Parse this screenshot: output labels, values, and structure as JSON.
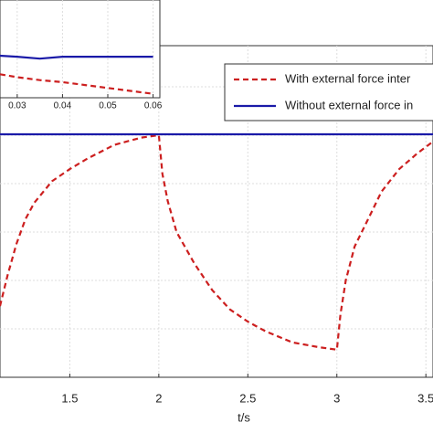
{
  "chart_data": [
    {
      "type": "line",
      "x_label": "t/s",
      "xlim": [
        1.108,
        3.54
      ],
      "ylim": [
        0,
        6.85
      ],
      "xticks": [
        1.5,
        2,
        2.5,
        3,
        3.5
      ],
      "grid": true,
      "legend": "upper right",
      "series": [
        {
          "name": "With external force inter",
          "color": "#cc1f1f",
          "dash": true,
          "x": [
            1.108,
            1.15,
            1.2,
            1.25,
            1.3,
            1.4,
            1.5,
            1.6,
            1.75,
            1.9,
            2,
            2.02,
            2.05,
            2.1,
            2.2,
            2.3,
            2.4,
            2.5,
            2.6,
            2.75,
            2.9,
            3,
            3.02,
            3.05,
            3.1,
            3.2,
            3.25,
            3.35,
            3.45,
            3.54
          ],
          "values": [
            1.47,
            2.1,
            2.75,
            3.26,
            3.6,
            4.05,
            4.3,
            4.52,
            4.8,
            4.95,
            5.0,
            4.2,
            3.64,
            3.0,
            2.35,
            1.8,
            1.4,
            1.15,
            0.95,
            0.72,
            0.62,
            0.57,
            1.3,
            2.0,
            2.7,
            3.45,
            3.83,
            4.3,
            4.62,
            4.87
          ]
        },
        {
          "name": "Without external force in",
          "color": "#1a1aa8",
          "dash": false,
          "x": [
            1.108,
            3.54
          ],
          "values": [
            5.02,
            5.02
          ]
        }
      ]
    },
    {
      "type": "line",
      "xlim": [
        0.0262,
        0.0615
      ],
      "ylim": [
        0,
        1
      ],
      "xticks": [
        0.03,
        0.04,
        0.05,
        0.06
      ],
      "grid": true,
      "series": [
        {
          "color": "#cc1f1f",
          "dash": true,
          "x": [
            0.0262,
            0.03,
            0.035,
            0.04,
            0.045,
            0.05,
            0.055,
            0.06
          ],
          "values": [
            0.24,
            0.21,
            0.18,
            0.16,
            0.13,
            0.1,
            0.07,
            0.04
          ]
        },
        {
          "color": "#1a1aa8",
          "dash": false,
          "x": [
            0.0262,
            0.03,
            0.035,
            0.04,
            0.05,
            0.06
          ],
          "values": [
            0.43,
            0.42,
            0.4,
            0.42,
            0.42,
            0.42
          ]
        }
      ]
    }
  ]
}
